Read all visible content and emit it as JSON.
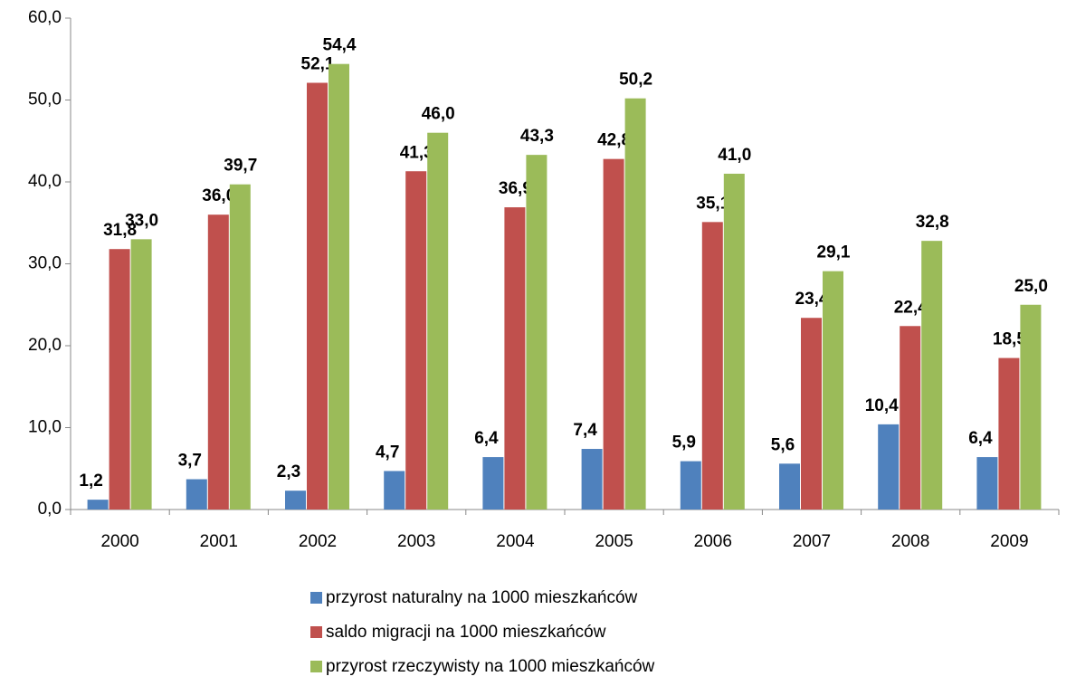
{
  "chart_data": {
    "type": "bar",
    "categories": [
      "2000",
      "2001",
      "2002",
      "2003",
      "2004",
      "2005",
      "2006",
      "2007",
      "2008",
      "2009"
    ],
    "series": [
      {
        "name": "przyrost naturalny na 1000 mieszkańców",
        "color": "#4f81bd",
        "label_color": "#1f3f66",
        "values": [
          1.2,
          3.7,
          2.3,
          4.7,
          6.4,
          7.4,
          5.9,
          5.6,
          10.4,
          6.4
        ],
        "value_labels": [
          "1,2",
          "3,7",
          "2,3",
          "4,7",
          "6,4",
          "7,4",
          "5,9",
          "5,6",
          "10,4",
          "6,4"
        ]
      },
      {
        "name": "saldo migracji na 1000 mieszkańców",
        "color": "#c0504d",
        "label_color": "#953735",
        "values": [
          31.8,
          36.0,
          52.1,
          41.3,
          36.9,
          42.8,
          35.1,
          23.4,
          22.4,
          18.5
        ],
        "value_labels": [
          "31,8",
          "36,0",
          "52,1",
          "41,3",
          "36,9",
          "42,8",
          "35,1",
          "23,4",
          "22,4",
          "18,5"
        ]
      },
      {
        "name": "przyrost rzeczywisty na 1000 mieszkańców",
        "color": "#9bbb59",
        "label_color": "#4f6228",
        "values": [
          33.0,
          39.7,
          54.4,
          46.0,
          43.3,
          50.2,
          41.0,
          29.1,
          32.8,
          25.0
        ],
        "value_labels": [
          "33,0",
          "39,7",
          "54,4",
          "46,0",
          "43,3",
          "50,2",
          "41,0",
          "29,1",
          "32,8",
          "25,0"
        ]
      }
    ],
    "ylim": [
      0,
      60
    ],
    "yticks": [
      {
        "value": 0,
        "label": "0,0"
      },
      {
        "value": 10,
        "label": "10,0"
      },
      {
        "value": 20,
        "label": "20,0"
      },
      {
        "value": 30,
        "label": "30,0"
      },
      {
        "value": 40,
        "label": "40,0"
      },
      {
        "value": 50,
        "label": "50,0"
      },
      {
        "value": 60,
        "label": "60,0"
      }
    ],
    "grid": false,
    "legend": "bottom"
  }
}
